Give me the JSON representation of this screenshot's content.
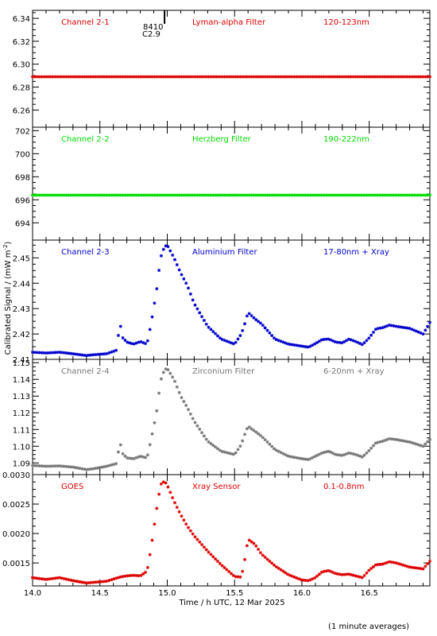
{
  "figure": {
    "x_axis_label": "Time / h UTC, 12 Mar 2025",
    "y_axis_label": "Calibrated Signal / (mW m",
    "y_axis_label_sup": "-2",
    "y_axis_label_end": ")",
    "footnote": "(1 minute averages)",
    "flare_marker": {
      "time": 14.98,
      "line1": "8410",
      "line2": "C2.9"
    }
  },
  "panels": [
    {
      "channel": "Channel 2-1",
      "filter": "Lyman-alpha Filter",
      "band": "120-123nm",
      "color": "#dd0000"
    },
    {
      "channel": "Channel 2-2",
      "filter": "Herzberg Filter",
      "band": "190-222nm",
      "color": "#00dd00"
    },
    {
      "channel": "Channel 2-3",
      "filter": "Aluminium Filter",
      "band": "17-80nm + Xray",
      "color": "#0000cc"
    },
    {
      "channel": "Channel 2-4",
      "filter": "Zirconium Filter",
      "band": "6-20nm + Xray",
      "color": "#777777"
    },
    {
      "channel": "GOES",
      "filter": "Xray Sensor",
      "band": "0.1-0.8nm",
      "color": "#dd0000"
    }
  ],
  "chart_data": [
    {
      "type": "scatter",
      "xlim": [
        14.0,
        16.95
      ],
      "ylim": [
        6.245,
        6.347
      ],
      "yticks": [
        "6.26",
        "6.28",
        "6.30",
        "6.32",
        "6.34"
      ],
      "series": [
        {
          "x": [
            14.0,
            15.0,
            16.0,
            16.95
          ],
          "y": [
            6.289,
            6.289,
            6.289,
            6.289
          ]
        }
      ]
    },
    {
      "type": "scatter",
      "xlim": [
        14.0,
        16.95
      ],
      "ylim": [
        692.5,
        702.3
      ],
      "yticks": [
        "694",
        "696",
        "698",
        "700",
        "702"
      ],
      "series": [
        {
          "x": [
            14.0,
            15.0,
            16.0,
            16.95
          ],
          "y": [
            696.4,
            696.4,
            696.4,
            696.4
          ]
        }
      ]
    },
    {
      "type": "scatter",
      "xlim": [
        14.0,
        16.95
      ],
      "ylim": [
        2.41,
        2.457
      ],
      "yticks": [
        "2.41",
        "2.42",
        "2.43",
        "2.44",
        "2.45"
      ],
      "series": [
        {
          "x": [
            14.0,
            14.1,
            14.2,
            14.3,
            14.4,
            14.45,
            14.55,
            14.62,
            14.65,
            14.67,
            14.7,
            14.75,
            14.8,
            14.85,
            14.88,
            14.92,
            14.95,
            14.98,
            15.0,
            15.05,
            15.1,
            15.15,
            15.2,
            15.3,
            15.4,
            15.5,
            15.55,
            15.57,
            15.6,
            15.65,
            15.7,
            15.8,
            15.9,
            16.0,
            16.05,
            16.1,
            16.15,
            16.2,
            16.25,
            16.3,
            16.35,
            16.4,
            16.45,
            16.5,
            16.55,
            16.6,
            16.65,
            16.7,
            16.8,
            16.9,
            16.95
          ],
          "y": [
            2.4128,
            2.4125,
            2.4128,
            2.4122,
            2.4115,
            2.4118,
            2.4122,
            2.4135,
            2.424,
            2.4185,
            2.4168,
            2.416,
            2.417,
            2.416,
            2.424,
            2.437,
            2.45,
            2.4545,
            2.455,
            2.45,
            2.444,
            2.439,
            2.432,
            2.423,
            2.418,
            2.416,
            2.42,
            2.423,
            2.4285,
            2.426,
            2.424,
            2.418,
            2.416,
            2.4152,
            2.4148,
            2.4162,
            2.4178,
            2.418,
            2.4168,
            2.4165,
            2.418,
            2.417,
            2.4158,
            2.4185,
            2.422,
            2.4225,
            2.4235,
            2.423,
            2.4222,
            2.42,
            2.4245
          ]
        }
      ]
    },
    {
      "type": "scatter",
      "xlim": [
        14.0,
        16.95
      ],
      "ylim": [
        1.083,
        1.152
      ],
      "yticks": [
        "1.09",
        "1.10",
        "1.11",
        "1.12",
        "1.13",
        "1.14",
        "1.15"
      ],
      "series": [
        {
          "x": [
            14.0,
            14.1,
            14.2,
            14.3,
            14.4,
            14.45,
            14.55,
            14.62,
            14.65,
            14.67,
            14.7,
            14.75,
            14.8,
            14.85,
            14.88,
            14.92,
            14.95,
            14.98,
            15.0,
            15.05,
            15.1,
            15.15,
            15.2,
            15.3,
            15.4,
            15.5,
            15.55,
            15.57,
            15.6,
            15.65,
            15.7,
            15.8,
            15.9,
            16.0,
            16.05,
            16.1,
            16.15,
            16.2,
            16.25,
            16.3,
            16.35,
            16.4,
            16.45,
            16.5,
            16.55,
            16.6,
            16.65,
            16.7,
            16.8,
            16.9,
            16.95
          ],
          "y": [
            1.0885,
            1.088,
            1.0882,
            1.0875,
            1.086,
            1.0865,
            1.088,
            1.0895,
            1.102,
            1.0955,
            1.093,
            1.0925,
            1.094,
            1.093,
            1.104,
            1.12,
            1.139,
            1.146,
            1.1465,
            1.14,
            1.13,
            1.123,
            1.115,
            1.103,
            1.097,
            1.095,
            1.101,
            1.106,
            1.112,
            1.109,
            1.106,
            1.098,
            1.094,
            1.0925,
            1.092,
            1.094,
            1.096,
            1.097,
            1.095,
            1.0945,
            1.096,
            1.095,
            1.0935,
            1.0975,
            1.102,
            1.103,
            1.1045,
            1.104,
            1.1025,
            1.1,
            1.104
          ]
        }
      ]
    },
    {
      "type": "scatter",
      "xlim": [
        14.0,
        16.95
      ],
      "ylim": [
        0.00111,
        0.003
      ],
      "yticks": [
        "0.0015",
        "0.0020",
        "0.0025",
        "0.0030"
      ],
      "series": [
        {
          "x": [
            14.0,
            14.1,
            14.2,
            14.3,
            14.4,
            14.45,
            14.55,
            14.62,
            14.65,
            14.67,
            14.7,
            14.75,
            14.8,
            14.85,
            14.88,
            14.92,
            14.95,
            14.98,
            15.0,
            15.05,
            15.1,
            15.15,
            15.2,
            15.3,
            15.4,
            15.5,
            15.55,
            15.57,
            15.6,
            15.65,
            15.7,
            15.8,
            15.9,
            16.0,
            16.05,
            16.1,
            16.15,
            16.2,
            16.25,
            16.3,
            16.35,
            16.4,
            16.45,
            16.5,
            16.55,
            16.6,
            16.65,
            16.7,
            16.8,
            16.9,
            16.95
          ],
          "y": [
            0.00125,
            0.00122,
            0.00125,
            0.0012,
            0.00116,
            0.00117,
            0.00119,
            0.00124,
            0.00126,
            0.00127,
            0.00128,
            0.00129,
            0.00128,
            0.00136,
            0.00175,
            0.0024,
            0.00283,
            0.00289,
            0.00282,
            0.00255,
            0.00232,
            0.00212,
            0.00196,
            0.0017,
            0.00147,
            0.00127,
            0.00126,
            0.00148,
            0.0019,
            0.00182,
            0.00165,
            0.00145,
            0.0013,
            0.00121,
            0.0012,
            0.00125,
            0.00135,
            0.00137,
            0.00132,
            0.0013,
            0.00131,
            0.00128,
            0.00125,
            0.00138,
            0.00147,
            0.00148,
            0.00152,
            0.0015,
            0.00143,
            0.0014,
            0.00153
          ]
        }
      ]
    }
  ]
}
